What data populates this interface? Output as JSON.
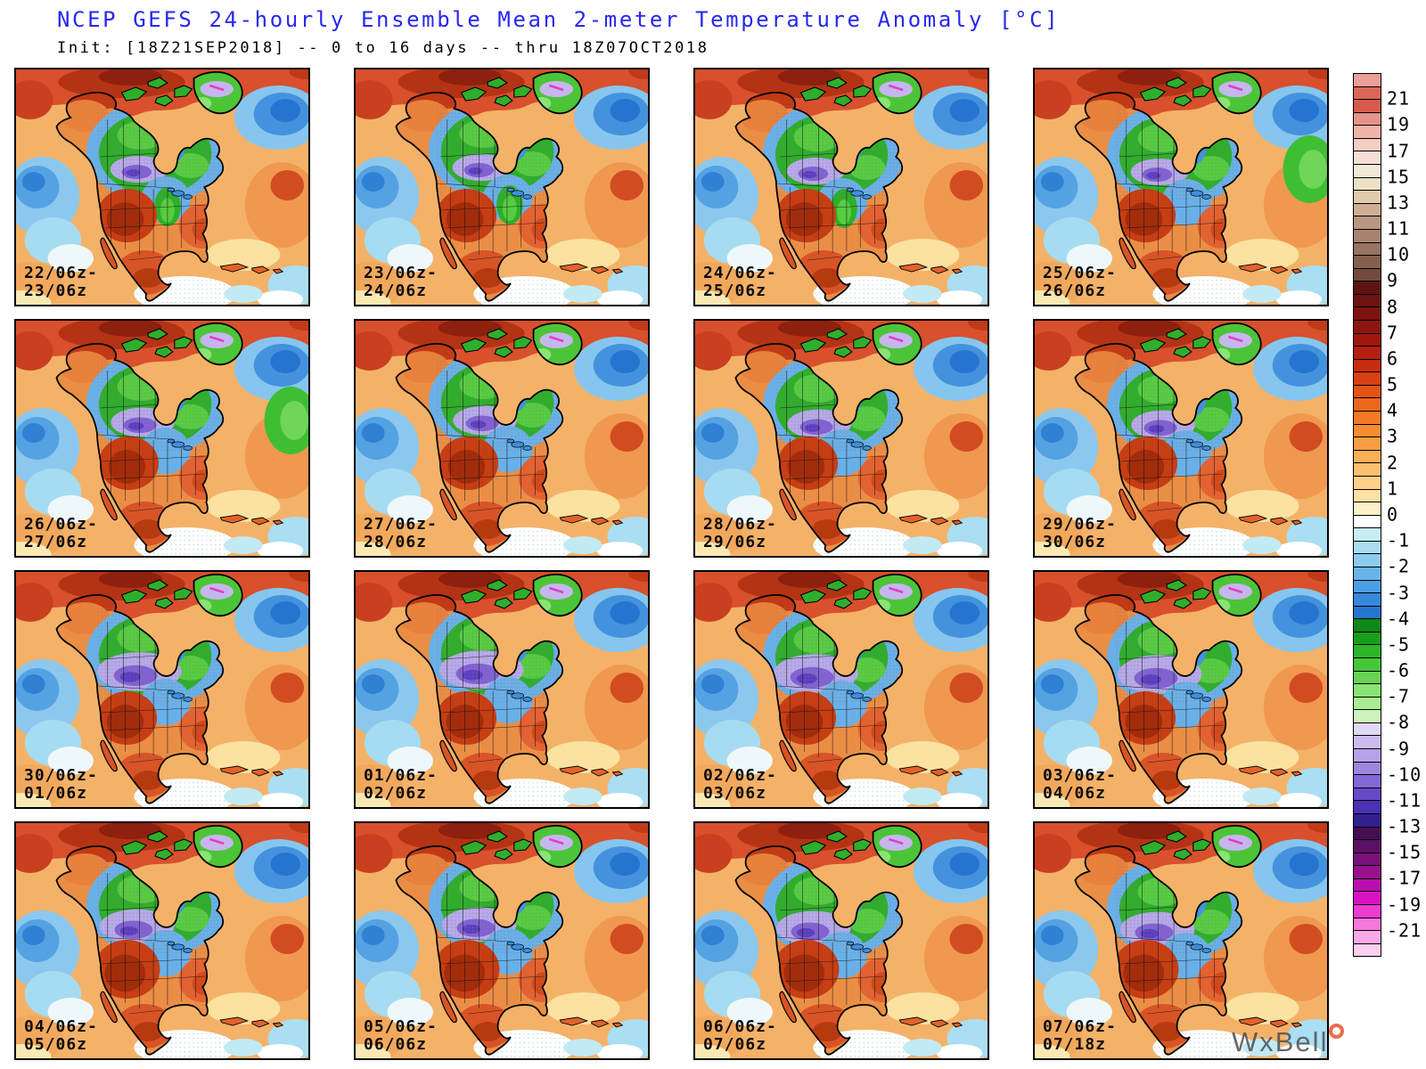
{
  "header": {
    "title": "NCEP GEFS 24-hourly Ensemble Mean 2-meter Temperature Anomaly [°C]",
    "subtitle": "Init: [18Z21SEP2018] -- 0 to 16 days -- thru 18Z07OCT2018",
    "title_color": "#2828f0"
  },
  "panels": [
    {
      "line1": "22/06z-",
      "line2": "23/06z"
    },
    {
      "line1": "23/06z-",
      "line2": "24/06z"
    },
    {
      "line1": "24/06z-",
      "line2": "25/06z"
    },
    {
      "line1": "25/06z-",
      "line2": "26/06z"
    },
    {
      "line1": "26/06z-",
      "line2": "27/06z"
    },
    {
      "line1": "27/06z-",
      "line2": "28/06z"
    },
    {
      "line1": "28/06z-",
      "line2": "29/06z"
    },
    {
      "line1": "29/06z-",
      "line2": "30/06z"
    },
    {
      "line1": "30/06z-",
      "line2": "01/06z"
    },
    {
      "line1": "01/06z-",
      "line2": "02/06z"
    },
    {
      "line1": "02/06z-",
      "line2": "03/06z"
    },
    {
      "line1": "03/06z-",
      "line2": "04/06z"
    },
    {
      "line1": "04/06z-",
      "line2": "05/06z"
    },
    {
      "line1": "05/06z-",
      "line2": "06/06z"
    },
    {
      "line1": "06/06z-",
      "line2": "07/06z"
    },
    {
      "line1": "07/06z-",
      "line2": "07/18z"
    }
  ],
  "colorbar": {
    "labels": [
      "21",
      "19",
      "17",
      "15",
      "13",
      "11",
      "10",
      "9",
      "8",
      "7",
      "6",
      "5",
      "4",
      "3",
      "2",
      "1",
      "0",
      "-1",
      "-2",
      "-3",
      "-4",
      "-5",
      "-6",
      "-7",
      "-8",
      "-9",
      "-10",
      "-11",
      "-13",
      "-15",
      "-17",
      "-19",
      "-21"
    ],
    "cells": [
      {
        "c": "#ec9f96",
        "d": 1
      },
      {
        "c": "#db6759"
      },
      {
        "c": "#d75b4b",
        "d": 1
      },
      {
        "c": "#e6938a",
        "d": 1
      },
      {
        "c": "#f0b4a9"
      },
      {
        "c": "#f4cdc3",
        "d": 1
      },
      {
        "c": "#f6ded6"
      },
      {
        "c": "#f3e9da",
        "d": 1
      },
      {
        "c": "#ece0c5",
        "d": 1
      },
      {
        "c": "#e0cbab",
        "d": 1
      },
      {
        "c": "#cfae94",
        "d": 1
      },
      {
        "c": "#b99681"
      },
      {
        "c": "#a98470"
      },
      {
        "c": "#997263"
      },
      {
        "c": "#86604f",
        "d": 1
      },
      {
        "c": "#714c3d"
      },
      {
        "c": "#5e1410"
      },
      {
        "c": "#6c1310"
      },
      {
        "c": "#7c130f"
      },
      {
        "c": "#8e150e"
      },
      {
        "c": "#a0180c"
      },
      {
        "c": "#b5200e"
      },
      {
        "c": "#c82d10"
      },
      {
        "c": "#d74012"
      },
      {
        "c": "#e35316"
      },
      {
        "c": "#ec661c"
      },
      {
        "c": "#f27a24"
      },
      {
        "c": "#f68c30",
        "d": 1
      },
      {
        "c": "#f99e42",
        "d": 1
      },
      {
        "c": "#fbaf56"
      },
      {
        "c": "#fcbf6e"
      },
      {
        "c": "#fdcf88"
      },
      {
        "c": "#fee0a4"
      },
      {
        "c": "#fdf0c4"
      },
      {
        "c": "#ffffff"
      },
      {
        "c": "#c8edf5",
        "d": 1
      },
      {
        "c": "#a8ddf2"
      },
      {
        "c": "#8accee"
      },
      {
        "c": "#68b4ea"
      },
      {
        "c": "#4c9ee4"
      },
      {
        "c": "#3689dc"
      },
      {
        "c": "#2476d2"
      },
      {
        "c": "#0e8816"
      },
      {
        "c": "#189f1a"
      },
      {
        "c": "#2cb528"
      },
      {
        "c": "#46c73a"
      },
      {
        "c": "#66d452"
      },
      {
        "c": "#8ae374",
        "d": 1
      },
      {
        "c": "#aaec92",
        "d": 1
      },
      {
        "c": "#ccf5ba"
      },
      {
        "c": "#e0d8f6"
      },
      {
        "c": "#cbbcee",
        "d": 1
      },
      {
        "c": "#b5a2e8"
      },
      {
        "c": "#9c86e0"
      },
      {
        "c": "#8168d6",
        "d": 1
      },
      {
        "c": "#654ac8",
        "d": 1
      },
      {
        "c": "#4c30b6"
      },
      {
        "c": "#32208f"
      },
      {
        "c": "#450e52"
      },
      {
        "c": "#5c1065"
      },
      {
        "c": "#7a1179"
      },
      {
        "c": "#98128f"
      },
      {
        "c": "#b90fae"
      },
      {
        "c": "#da12c4"
      },
      {
        "c": "#ef3ad2",
        "d": 1
      },
      {
        "c": "#f676dc",
        "d": 1
      },
      {
        "c": "#f9aae6",
        "d": 1
      },
      {
        "c": "#fbd0f0",
        "d": 1
      }
    ]
  },
  "watermark": {
    "text": "WxBell"
  }
}
